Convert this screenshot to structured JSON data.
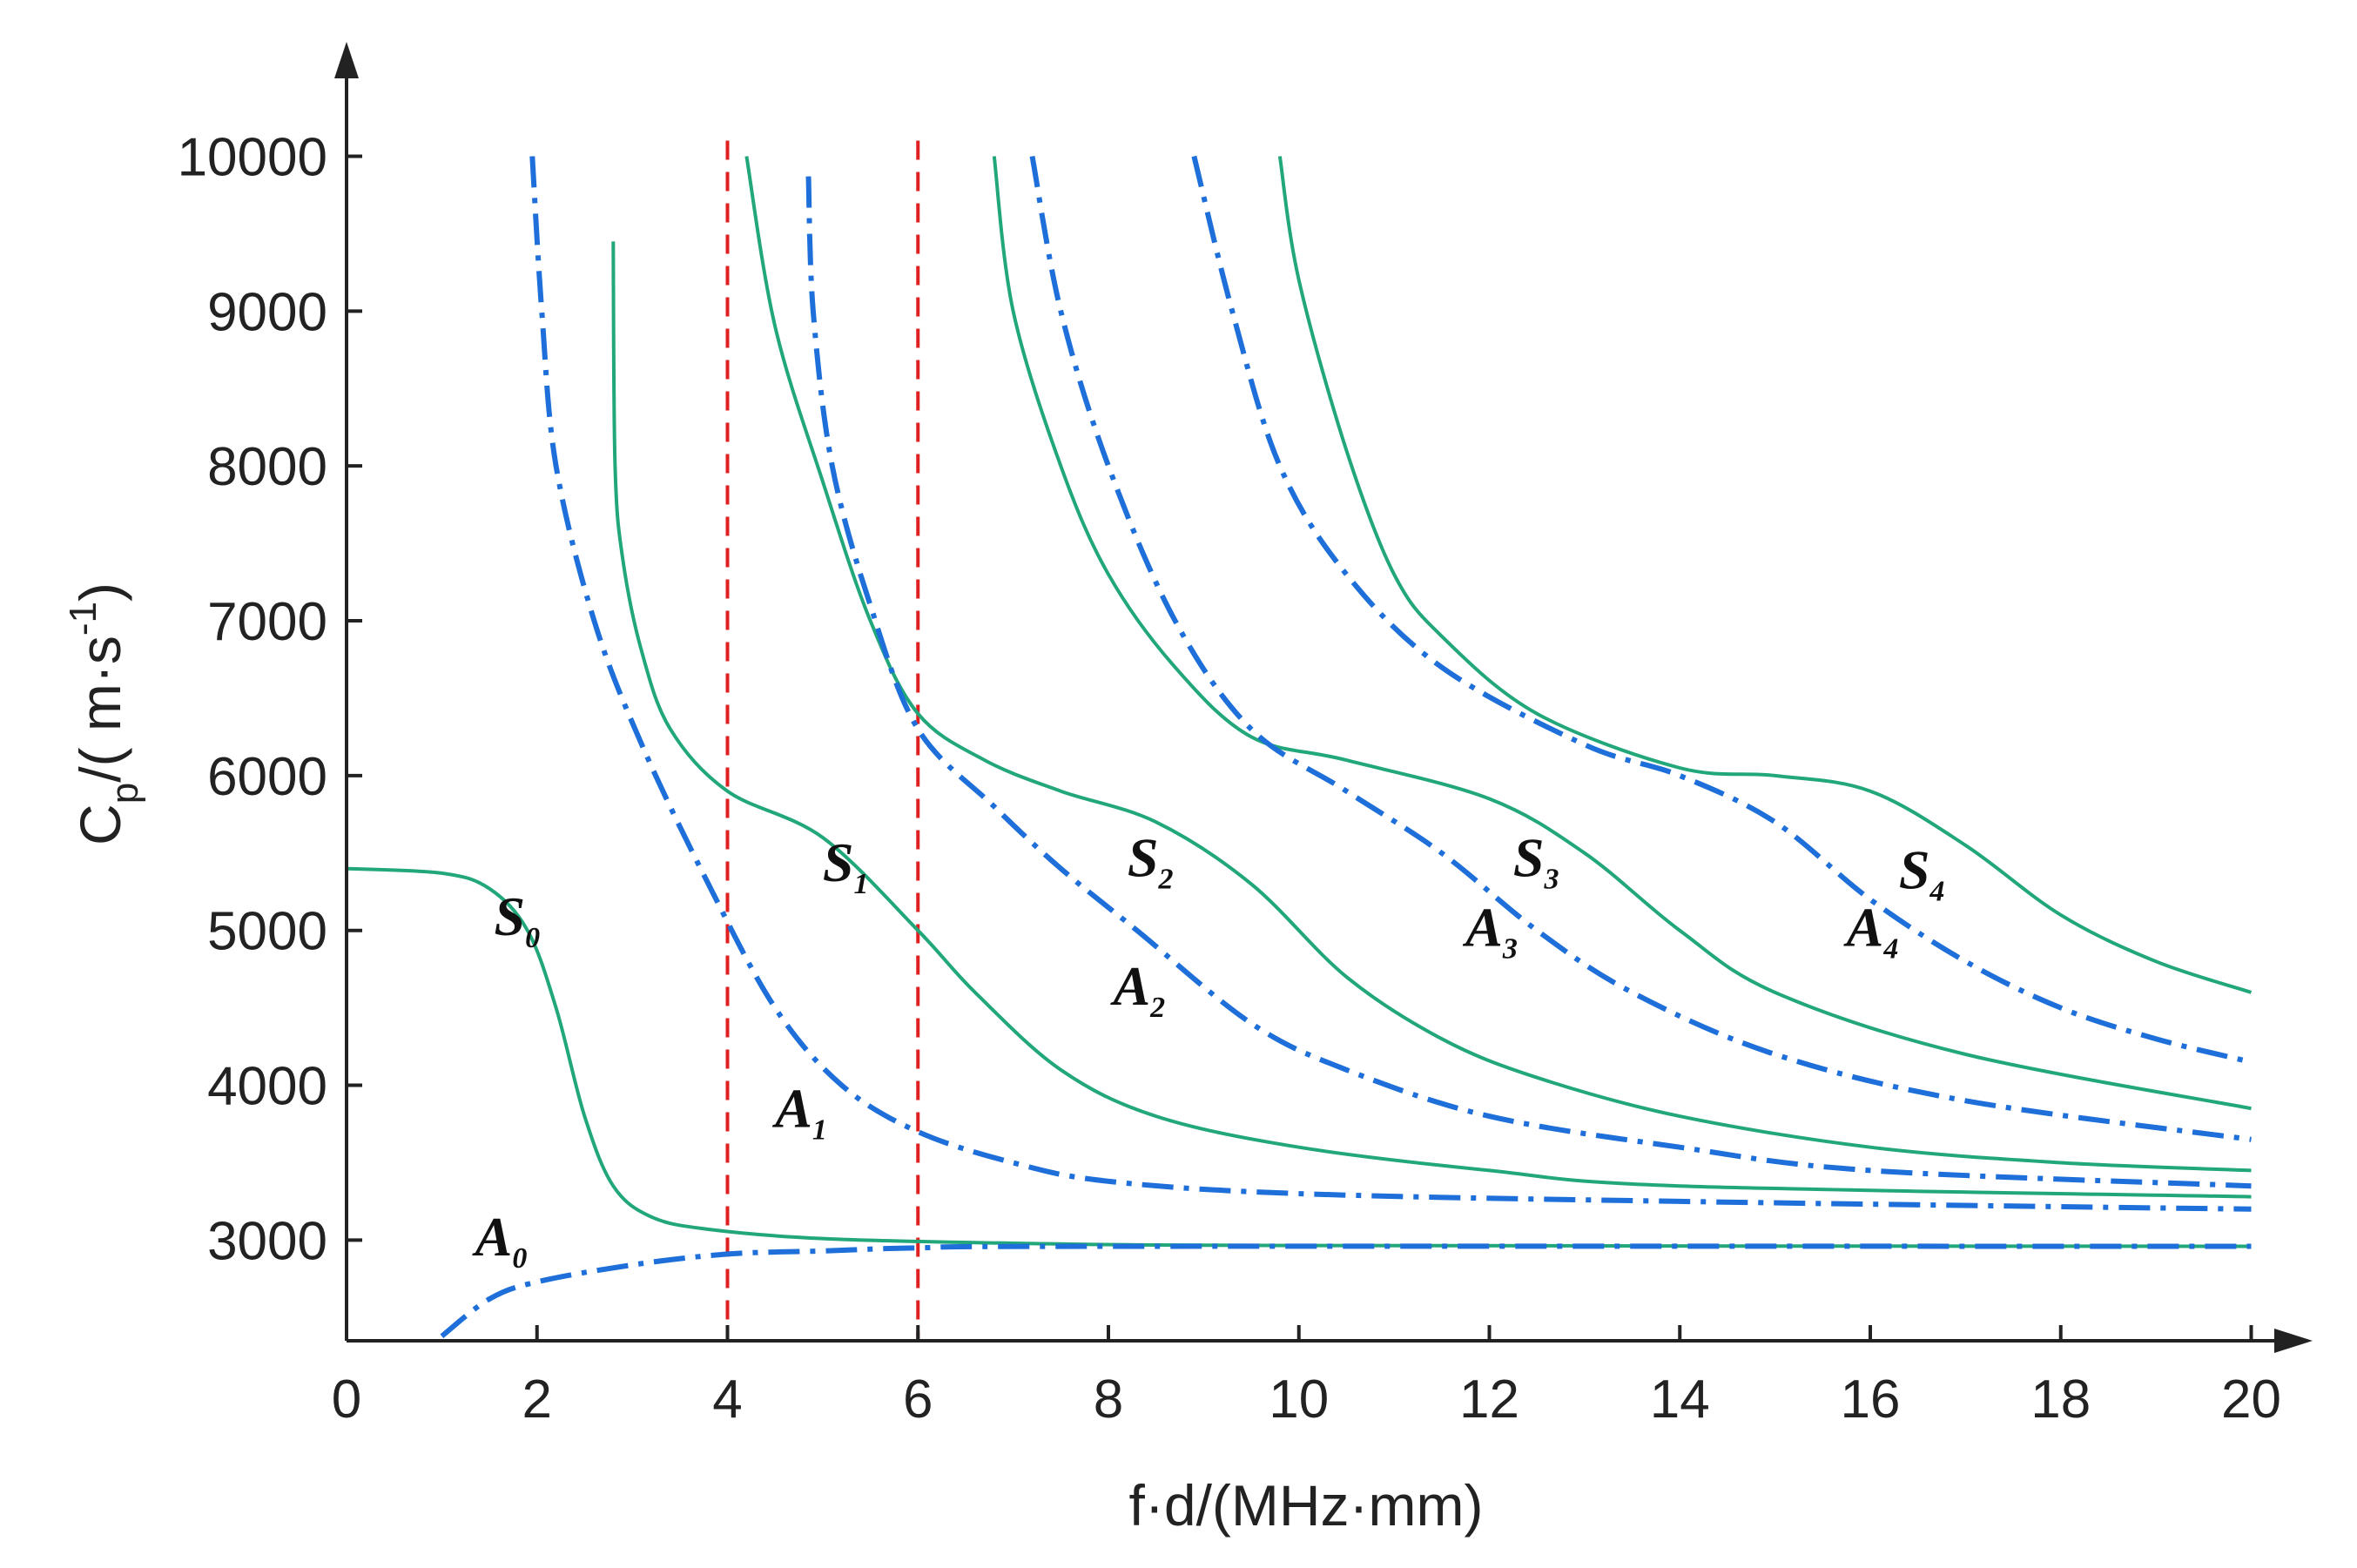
{
  "chart_data": {
    "type": "line",
    "title": "",
    "xlabel": "f·d/(MHz·mm)",
    "ylabel": {
      "prefix": "C",
      "sub": "p",
      "mid": "/( m·s",
      "sup": "-1",
      "suffix": ")"
    },
    "xlim": [
      0,
      20.8
    ],
    "ylim": [
      2350,
      10700
    ],
    "x_ticks": [
      0,
      2,
      4,
      6,
      8,
      10,
      12,
      14,
      16,
      18,
      20
    ],
    "x_tick_labels": [
      "0",
      "2",
      "4",
      "6",
      "8",
      "10",
      "12",
      "14",
      "16",
      "18",
      "20"
    ],
    "y_ticks": [
      3000,
      4000,
      5000,
      6000,
      7000,
      8000,
      9000,
      10000
    ],
    "y_tick_labels": [
      "3000",
      "4000",
      "5000",
      "6000",
      "7000",
      "8000",
      "9000",
      "10000"
    ],
    "reference_lines_x": [
      4,
      6
    ],
    "colors": {
      "symmetric": "#22a77a",
      "antisymmetric": "#1e6fd9",
      "reference": "#e02020",
      "axis": "#222222"
    },
    "series": [
      {
        "name": "S0",
        "family": "symmetric",
        "label_main": "S",
        "label_sub": "0",
        "label_at": [
          1.55,
          4970
        ],
        "points": [
          [
            0,
            5400
          ],
          [
            1,
            5370
          ],
          [
            1.5,
            5270
          ],
          [
            1.9,
            5000
          ],
          [
            2.2,
            4500
          ],
          [
            2.5,
            3800
          ],
          [
            2.8,
            3350
          ],
          [
            3.2,
            3150
          ],
          [
            3.8,
            3070
          ],
          [
            5,
            3010
          ],
          [
            7,
            2980
          ],
          [
            10,
            2965
          ],
          [
            20,
            2960
          ]
        ]
      },
      {
        "name": "S1",
        "family": "symmetric",
        "label_main": "S",
        "label_sub": "1",
        "label_at": [
          5.0,
          5320
        ],
        "points": [
          [
            2.8,
            9450
          ],
          [
            2.82,
            8000
          ],
          [
            2.9,
            7400
          ],
          [
            3.1,
            6800
          ],
          [
            3.4,
            6300
          ],
          [
            4,
            5900
          ],
          [
            5,
            5600
          ],
          [
            6,
            5000
          ],
          [
            6.6,
            4600
          ],
          [
            7.5,
            4100
          ],
          [
            8.5,
            3800
          ],
          [
            10,
            3600
          ],
          [
            12,
            3450
          ],
          [
            14,
            3350
          ],
          [
            20,
            3280
          ]
        ]
      },
      {
        "name": "S2",
        "family": "symmetric",
        "label_main": "S",
        "label_sub": "2",
        "label_at": [
          8.2,
          5350
        ],
        "points": [
          [
            4.2,
            10000
          ],
          [
            4.5,
            8900
          ],
          [
            5,
            7900
          ],
          [
            5.5,
            7000
          ],
          [
            6,
            6400
          ],
          [
            6.7,
            6100
          ],
          [
            7.5,
            5900
          ],
          [
            8.5,
            5700
          ],
          [
            9.5,
            5300
          ],
          [
            10.5,
            4700
          ],
          [
            11.5,
            4300
          ],
          [
            12.5,
            4050
          ],
          [
            14,
            3800
          ],
          [
            16,
            3600
          ],
          [
            18,
            3500
          ],
          [
            20,
            3450
          ]
        ]
      },
      {
        "name": "S3",
        "family": "symmetric",
        "label_main": "S",
        "label_sub": "3",
        "label_at": [
          12.25,
          5350
        ],
        "points": [
          [
            6.8,
            10000
          ],
          [
            7,
            9000
          ],
          [
            7.5,
            8000
          ],
          [
            8,
            7300
          ],
          [
            8.7,
            6700
          ],
          [
            9.5,
            6250
          ],
          [
            10.5,
            6100
          ],
          [
            12,
            5850
          ],
          [
            13,
            5500
          ],
          [
            14,
            5000
          ],
          [
            15,
            4600
          ],
          [
            17,
            4200
          ],
          [
            20,
            3850
          ]
        ]
      },
      {
        "name": "S4",
        "family": "symmetric",
        "label_main": "S",
        "label_sub": "4",
        "label_at": [
          16.3,
          5270
        ],
        "points": [
          [
            9.8,
            10000
          ],
          [
            10,
            9200
          ],
          [
            10.5,
            8100
          ],
          [
            11,
            7300
          ],
          [
            11.5,
            6900
          ],
          [
            12.5,
            6400
          ],
          [
            14,
            6050
          ],
          [
            15,
            6000
          ],
          [
            16,
            5900
          ],
          [
            17,
            5550
          ],
          [
            18,
            5100
          ],
          [
            19,
            4800
          ],
          [
            20,
            4600
          ]
        ]
      },
      {
        "name": "A0",
        "family": "antisymmetric",
        "label_main": "A",
        "label_sub": "0",
        "label_at": [
          1.35,
          2900
        ],
        "points": [
          [
            1,
            2380
          ],
          [
            1.5,
            2620
          ],
          [
            2,
            2730
          ],
          [
            3,
            2840
          ],
          [
            4,
            2910
          ],
          [
            5,
            2930
          ],
          [
            6,
            2950
          ],
          [
            8,
            2960
          ],
          [
            20,
            2960
          ]
        ]
      },
      {
        "name": "A1",
        "family": "antisymmetric",
        "label_main": "A",
        "label_sub": "1",
        "label_at": [
          4.5,
          3730
        ],
        "points": [
          [
            1.95,
            10000
          ],
          [
            2.05,
            9000
          ],
          [
            2.2,
            8000
          ],
          [
            2.6,
            7000
          ],
          [
            3.1,
            6200
          ],
          [
            3.8,
            5300
          ],
          [
            4.5,
            4500
          ],
          [
            5.2,
            4000
          ],
          [
            6,
            3700
          ],
          [
            7,
            3500
          ],
          [
            8,
            3380
          ],
          [
            10,
            3300
          ],
          [
            14,
            3250
          ],
          [
            20,
            3200
          ]
        ]
      },
      {
        "name": "A2",
        "family": "antisymmetric",
        "label_main": "A",
        "label_sub": "2",
        "label_at": [
          8.05,
          4520
        ],
        "points": [
          [
            4.85,
            9870
          ],
          [
            4.9,
            9000
          ],
          [
            5.1,
            8000
          ],
          [
            5.5,
            7100
          ],
          [
            6,
            6300
          ],
          [
            6.8,
            5800
          ],
          [
            7.5,
            5400
          ],
          [
            8.3,
            5000
          ],
          [
            9.5,
            4400
          ],
          [
            10.5,
            4100
          ],
          [
            12,
            3800
          ],
          [
            14,
            3600
          ],
          [
            16,
            3450
          ],
          [
            20,
            3350
          ]
        ]
      },
      {
        "name": "A3",
        "family": "antisymmetric",
        "label_main": "A",
        "label_sub": "3",
        "label_at": [
          11.75,
          4900
        ],
        "points": [
          [
            7.2,
            10000
          ],
          [
            7.5,
            9000
          ],
          [
            8,
            8000
          ],
          [
            8.7,
            7000
          ],
          [
            9.5,
            6300
          ],
          [
            10.5,
            5900
          ],
          [
            11.5,
            5500
          ],
          [
            12.5,
            5000
          ],
          [
            13.5,
            4600
          ],
          [
            15,
            4200
          ],
          [
            17,
            3900
          ],
          [
            20,
            3650
          ]
        ]
      },
      {
        "name": "A4",
        "family": "antisymmetric",
        "label_main": "A",
        "label_sub": "4",
        "label_at": [
          15.75,
          4900
        ],
        "points": [
          [
            8.9,
            10000
          ],
          [
            9.3,
            9000
          ],
          [
            9.8,
            8000
          ],
          [
            10.5,
            7300
          ],
          [
            11.5,
            6700
          ],
          [
            13,
            6200
          ],
          [
            14,
            6000
          ],
          [
            15,
            5700
          ],
          [
            16,
            5200
          ],
          [
            17,
            4800
          ],
          [
            18,
            4500
          ],
          [
            19,
            4300
          ],
          [
            20,
            4150
          ]
        ]
      }
    ]
  }
}
